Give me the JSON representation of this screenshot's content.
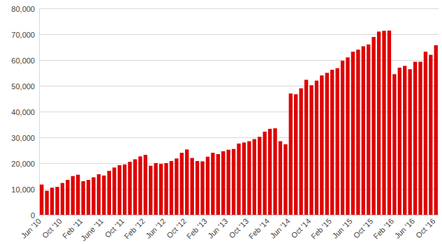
{
  "chart_data": {
    "type": "bar",
    "categories": [
      "Jun '10",
      null,
      null,
      null,
      "Oct '10",
      null,
      null,
      null,
      "Feb '11",
      null,
      null,
      null,
      "June '11",
      null,
      null,
      null,
      "Oct '11",
      null,
      null,
      null,
      "Feb '12",
      null,
      null,
      null,
      "Jun '12",
      null,
      null,
      null,
      "Oct '12",
      null,
      null,
      null,
      "Feb '13",
      null,
      null,
      null,
      "Jun '13",
      null,
      null,
      null,
      "Oct '13",
      null,
      null,
      null,
      "Feb '14",
      null,
      null,
      null,
      "Jun '14",
      null,
      null,
      null,
      "Oct '14",
      null,
      null,
      null,
      "Feb '15",
      null,
      null,
      null,
      "Jun '15",
      null,
      null,
      null,
      "Oct '15",
      null,
      null,
      null,
      "Feb '16",
      null,
      null,
      null,
      "Jun '16",
      null,
      null,
      null,
      "Oct '16"
    ],
    "values": [
      11700,
      9300,
      10500,
      10800,
      12300,
      13500,
      15000,
      15500,
      13000,
      13500,
      14500,
      15700,
      15200,
      17000,
      18300,
      19200,
      19500,
      20500,
      21500,
      22600,
      23200,
      19000,
      20000,
      19700,
      20000,
      20800,
      21800,
      24000,
      25300,
      22000,
      20800,
      20700,
      22500,
      24000,
      23500,
      24600,
      25200,
      25500,
      27600,
      28000,
      28500,
      29300,
      30200,
      32200,
      33300,
      33500,
      28500,
      27300,
      47000,
      46700,
      49000,
      52300,
      50200,
      52000,
      54000,
      55000,
      56200,
      56800,
      59700,
      61000,
      63200,
      64000,
      65300,
      66000,
      68900,
      71000,
      71300,
      71400,
      54500,
      57000,
      57700,
      56400,
      59300,
      59300,
      63200,
      62000,
      65700
    ],
    "color": "#e00000",
    "ylim": [
      0,
      80000
    ],
    "yticks": [
      0,
      {
        "value": 10000,
        "label": "10,000"
      },
      {
        "value": 20000,
        "label": "20,000"
      },
      {
        "value": 30000,
        "label": "30,000"
      },
      {
        "value": 40000,
        "label": "40,000"
      },
      {
        "value": 50000,
        "label": "50,000"
      },
      {
        "value": 60000,
        "label": "60,000"
      },
      {
        "value": 70000,
        "label": "70,000"
      },
      {
        "value": 80000,
        "label": "80,000"
      }
    ],
    "grid": true
  }
}
